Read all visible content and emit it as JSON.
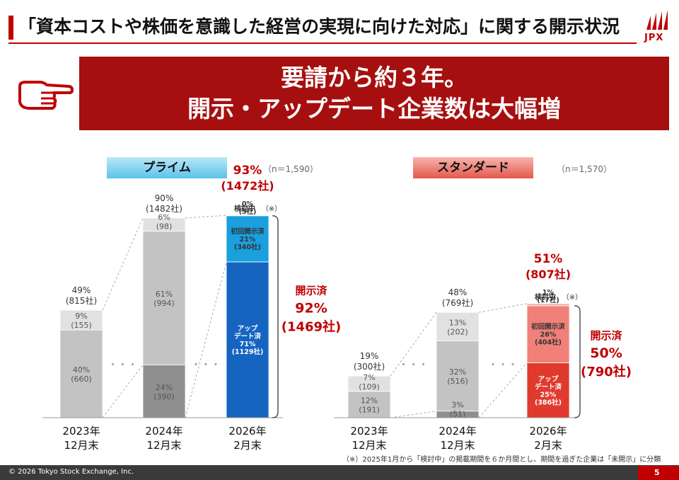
{
  "header": {
    "title": "「資本コストや株価を意識した経営の実現に向けた対応」に関する開示状況",
    "logo_text": "JPX",
    "accent_color": "#c00000"
  },
  "banner": {
    "line1": "要請から約３年。",
    "line2": "開示・アップデート企業数は大幅増",
    "color": "#a60f0f",
    "pointer_icon": "pointing-hand-icon"
  },
  "footer": {
    "copyright": "© 2026 Tokyo Stock Exchange, Inc.",
    "page_number": "5",
    "footnote": "（※）2025年1月から「検討中」の掲載期間を６か月間とし、期間を過ぎた企業は「未開示」に分類"
  },
  "chart_data": [
    {
      "type": "bar",
      "stacked": true,
      "title": "プライム",
      "n_label": "（n＝1,590）",
      "title_color": "#5cc3ea",
      "categories": [
        "2023年\n12月末",
        "2024年\n12月末",
        "2026年\n2月末"
      ],
      "totals": [
        {
          "pct": "49%",
          "count": "(815社)"
        },
        {
          "pct": "90%",
          "count": "(1482社)"
        },
        {
          "pct": "93%",
          "count": "(1472社)",
          "emphasis": true
        }
      ],
      "series": [
        {
          "name": "",
          "values": [
            40,
            24,
            71
          ],
          "labels": [
            [
              "40%",
              "(660)"
            ],
            [
              "24%",
              "(390)"
            ],
            [
              "アップ",
              "デート済",
              "71%",
              "(1129社)"
            ]
          ],
          "colors": [
            "#c3c3c3",
            "#8f8f8f",
            "#1565c0"
          ]
        },
        {
          "name": "",
          "values": [
            9,
            61,
            21
          ],
          "labels": [
            [
              "9%",
              "(155)"
            ],
            [
              "61%",
              "(994)"
            ],
            [
              "初回開示済",
              "21%",
              "(340社)"
            ]
          ],
          "colors": [
            "#e1e1e1",
            "#c3c3c3",
            "#1a9fdf"
          ]
        },
        {
          "name": "",
          "values": [
            0,
            6,
            0.2
          ],
          "labels": [
            [],
            [
              "6%",
              "(98)"
            ],
            [
              "0%",
              "(3社)"
            ]
          ],
          "colors": [
            "#e1e1e1",
            "#e1e1e1",
            "#00b0f0"
          ]
        }
      ],
      "pending_label": "検討中",
      "pending_note": "（※）",
      "disclosed": {
        "label": "開示済",
        "pct": "92%",
        "count": "(1469社)"
      },
      "ylim": [
        0,
        100
      ]
    },
    {
      "type": "bar",
      "stacked": true,
      "title": "スタンダード",
      "n_label": "（n＝1,570）",
      "title_color": "#e4584c",
      "categories": [
        "2023年\n12月末",
        "2024年\n12月末",
        "2026年\n2月末"
      ],
      "totals": [
        {
          "pct": "19%",
          "count": "(300社)"
        },
        {
          "pct": "48%",
          "count": "(769社)"
        },
        {
          "pct": "51%",
          "count": "(807社)",
          "emphasis": true
        }
      ],
      "series": [
        {
          "name": "",
          "values": [
            12,
            3,
            25
          ],
          "labels": [
            [
              "12%",
              "(191)"
            ],
            [
              "3%",
              "(51)"
            ],
            [
              "アップ",
              "デート済",
              "25%",
              "(386社)"
            ]
          ],
          "colors": [
            "#c3c3c3",
            "#8f8f8f",
            "#e03a2e"
          ]
        },
        {
          "name": "",
          "values": [
            7,
            32,
            26
          ],
          "labels": [
            [
              "7%",
              "(109)"
            ],
            [
              "32%",
              "(516)"
            ],
            [
              "初回開示済",
              "26%",
              "(404社)"
            ]
          ],
          "colors": [
            "#e1e1e1",
            "#c3c3c3",
            "#f08078"
          ]
        },
        {
          "name": "",
          "values": [
            0,
            13,
            1
          ],
          "labels": [
            [],
            [
              "13%",
              "(202)"
            ],
            [
              "1%",
              "(17社)"
            ]
          ],
          "colors": [
            "#e1e1e1",
            "#e1e1e1",
            "#f7b2ab"
          ]
        }
      ],
      "pending_label": "検討中",
      "pending_note": "（※）",
      "disclosed": {
        "label": "開示済",
        "pct": "50%",
        "count": "(790社)"
      },
      "ylim": [
        0,
        100
      ]
    }
  ]
}
